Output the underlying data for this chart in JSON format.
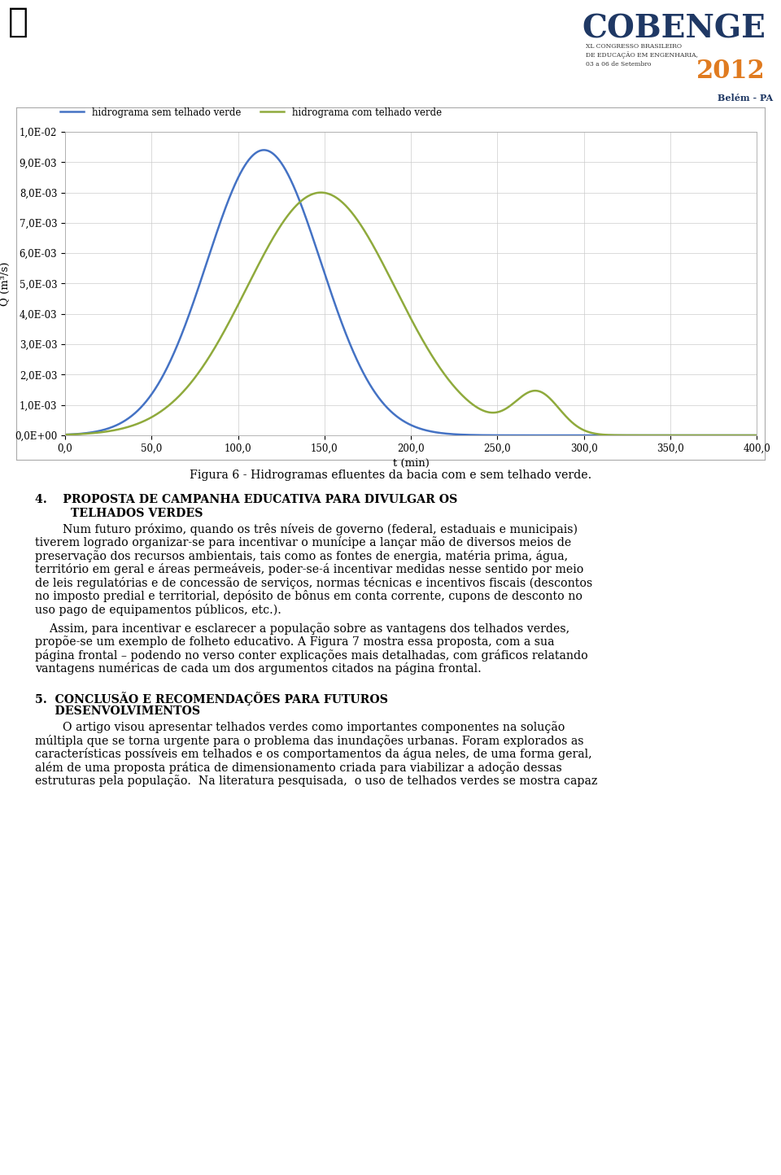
{
  "fig_width": 9.6,
  "fig_height": 14.44,
  "dpi": 100,
  "background_color": "#ffffff",
  "line1_color": "#4472c4",
  "line2_color": "#8faa3c",
  "line1_label": "hidrograma sem telhado verde",
  "line2_label": "hidrograma com telhado verde",
  "xlabel": "t (min)",
  "ylabel": "Q (m³/s)",
  "xlim": [
    0.0,
    400.0
  ],
  "ylim": [
    0.0,
    0.01
  ],
  "xticks": [
    0.0,
    50.0,
    100.0,
    150.0,
    200.0,
    250.0,
    300.0,
    350.0,
    400.0
  ],
  "yticks": [
    0.0,
    0.001,
    0.002,
    0.003,
    0.004,
    0.005,
    0.006,
    0.007,
    0.008,
    0.009,
    0.01
  ],
  "ytick_labels": [
    "0,0E+00",
    "1,0E-03",
    "2,0E-03",
    "3,0E-03",
    "4,0E-03",
    "5,0E-03",
    "6,0E-03",
    "7,0E-03",
    "8,0E-03",
    "9,0E-03",
    "1,0E-02"
  ],
  "xtick_labels": [
    "0,0",
    "50,0",
    "100,0",
    "150,0",
    "200,0",
    "250,0",
    "300,0",
    "350,0",
    "400,0"
  ],
  "fig_caption": "Figura 6 - Hidrogramas efluentes da bacia com e sem telhado verde.",
  "header_color": "#ffffff",
  "header_strip_color1": "#c8742a",
  "header_strip_color2": "#1f3864",
  "cobenge_color": "#1f3864",
  "cobenge_year_color": "#e07b20",
  "cobenge_sub_color": "#c8742a",
  "belempa_color": "#1f3864",
  "text_font": "DejaVu Serif",
  "text_fontsize": 10.2,
  "heading_fontsize": 10.2,
  "caption_fontsize": 10.2
}
